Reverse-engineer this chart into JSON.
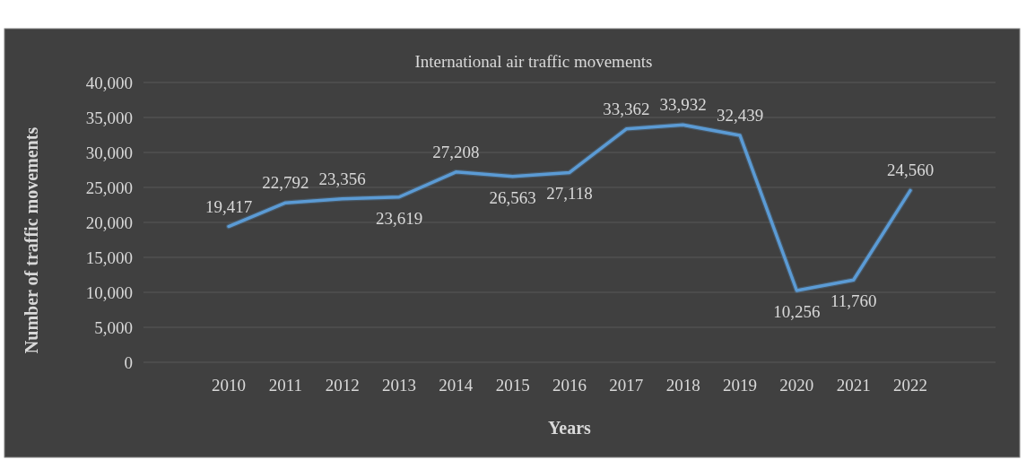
{
  "chart_data": {
    "type": "line",
    "title": "International air traffic movements",
    "xlabel": "Years",
    "ylabel": "Number of traffic movements",
    "categories": [
      "2010",
      "2011",
      "2012",
      "2013",
      "2014",
      "2015",
      "2016",
      "2017",
      "2018",
      "2019",
      "2020",
      "2021",
      "2022"
    ],
    "series": [
      {
        "color": "#5b9bd5",
        "values": [
          19417,
          22792,
          23356,
          23619,
          27208,
          26563,
          27118,
          33362,
          33932,
          32439,
          10256,
          11760,
          24560
        ],
        "value_labels": [
          "19,417",
          "22,792",
          "23,356",
          "23,619",
          "27,208",
          "26,563",
          "27,118",
          "33,362",
          "33,932",
          "32,439",
          "10,256",
          "11,760",
          "24,560"
        ]
      }
    ],
    "ylim": [
      0,
      40000
    ],
    "yticks": [
      {
        "value": 0,
        "label": "0"
      },
      {
        "value": 5000,
        "label": "5,000"
      },
      {
        "value": 10000,
        "label": "10,000"
      },
      {
        "value": 15000,
        "label": "15,000"
      },
      {
        "value": 20000,
        "label": "20,000"
      },
      {
        "value": 25000,
        "label": "25,000"
      },
      {
        "value": 30000,
        "label": "30,000"
      },
      {
        "value": 35000,
        "label": "35,000"
      },
      {
        "value": 40000,
        "label": "40,000"
      }
    ],
    "grid": "y",
    "marker": "none",
    "line_style": "solid"
  }
}
